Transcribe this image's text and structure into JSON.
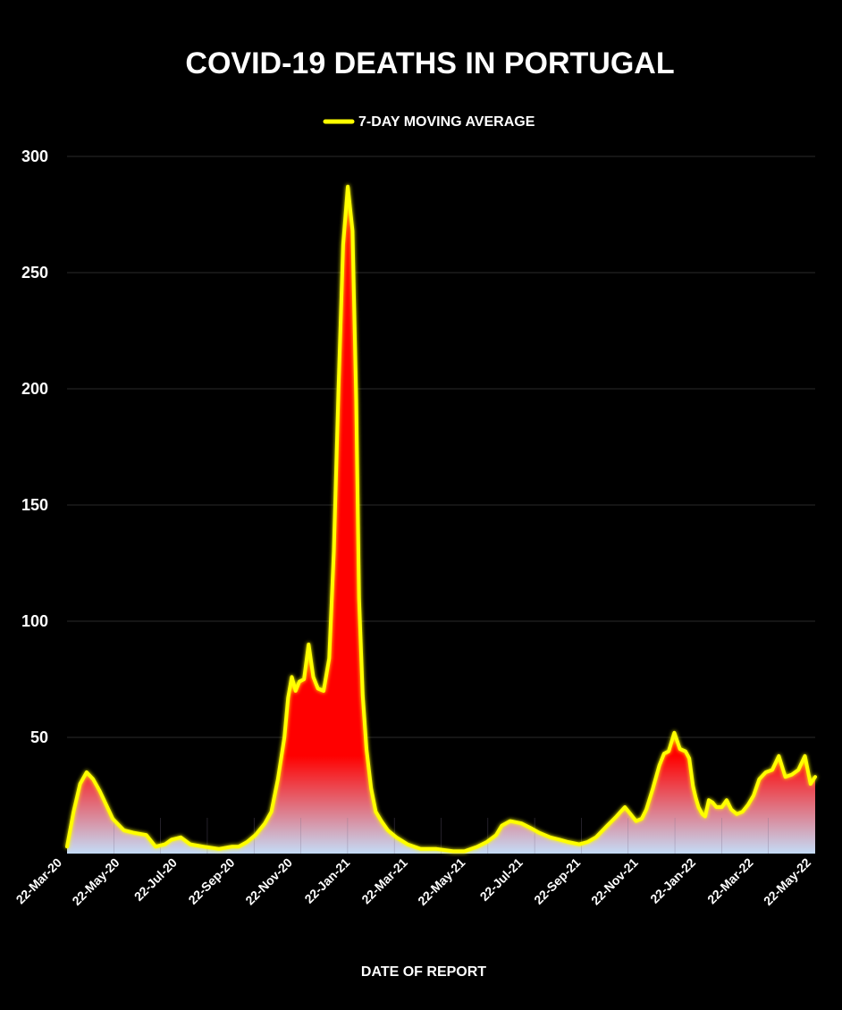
{
  "chart_data": {
    "type": "area",
    "title": "COVID-19 DEATHS IN PORTUGAL",
    "xlabel": "DATE OF REPORT",
    "ylabel": "",
    "ylim": [
      0,
      300
    ],
    "yticks": [
      50,
      100,
      150,
      200,
      250,
      300
    ],
    "grid": true,
    "legend": {
      "position": "top",
      "entries": [
        "7-DAY MOVING AVERAGE"
      ]
    },
    "colors": {
      "line": "#ffff00",
      "area_top": "#ff0000",
      "area_bottom": "#b7d4f5",
      "background": "#000000",
      "grid": "#2a2a2a"
    },
    "x_tick_labels": [
      "22-Mar-20",
      "22-May-20",
      "22-Jul-20",
      "22-Sep-20",
      "22-Nov-20",
      "22-Jan-21",
      "22-Mar-21",
      "22-May-21",
      "22-Jul-21",
      "22-Sep-21",
      "22-Nov-21",
      "22-Jan-22",
      "22-Mar-22",
      "22-May-22"
    ],
    "series": [
      {
        "name": "7-DAY MOVING AVERAGE",
        "x": [
          "2020-03-22",
          "2020-03-29",
          "2020-04-05",
          "2020-04-12",
          "2020-04-19",
          "2020-04-26",
          "2020-05-03",
          "2020-05-10",
          "2020-05-22",
          "2020-06-01",
          "2020-06-15",
          "2020-06-25",
          "2020-07-05",
          "2020-07-12",
          "2020-07-22",
          "2020-08-01",
          "2020-08-15",
          "2020-09-01",
          "2020-09-15",
          "2020-09-22",
          "2020-10-01",
          "2020-10-10",
          "2020-10-20",
          "2020-10-27",
          "2020-11-03",
          "2020-11-10",
          "2020-11-14",
          "2020-11-18",
          "2020-11-22",
          "2020-11-26",
          "2020-12-01",
          "2020-12-06",
          "2020-12-11",
          "2020-12-16",
          "2020-12-22",
          "2020-12-28",
          "2021-01-02",
          "2021-01-07",
          "2021-01-12",
          "2021-01-17",
          "2021-01-22",
          "2021-01-26",
          "2021-01-29",
          "2021-02-02",
          "2021-02-06",
          "2021-02-11",
          "2021-02-16",
          "2021-02-22",
          "2021-03-01",
          "2021-03-10",
          "2021-03-22",
          "2021-04-05",
          "2021-04-22",
          "2021-05-10",
          "2021-05-22",
          "2021-06-05",
          "2021-06-15",
          "2021-06-25",
          "2021-07-01",
          "2021-07-10",
          "2021-07-22",
          "2021-08-01",
          "2021-08-10",
          "2021-08-22",
          "2021-09-01",
          "2021-09-10",
          "2021-09-22",
          "2021-10-01",
          "2021-10-10",
          "2021-10-22",
          "2021-11-01",
          "2021-11-10",
          "2021-11-16",
          "2021-11-22",
          "2021-11-28",
          "2021-12-03",
          "2021-12-10",
          "2021-12-17",
          "2021-12-22",
          "2021-12-27",
          "2022-01-02",
          "2022-01-08",
          "2022-01-14",
          "2022-01-18",
          "2022-01-22",
          "2022-01-25",
          "2022-01-28",
          "2022-02-01",
          "2022-02-04",
          "2022-02-08",
          "2022-02-12",
          "2022-02-16",
          "2022-02-22",
          "2022-02-27",
          "2022-03-04",
          "2022-03-10",
          "2022-03-16",
          "2022-03-22",
          "2022-03-28",
          "2022-04-03",
          "2022-04-10",
          "2022-04-17",
          "2022-04-24",
          "2022-05-01",
          "2022-05-08",
          "2022-05-15",
          "2022-05-22",
          "2022-05-28",
          "2022-06-02"
        ],
        "values": [
          3,
          18,
          30,
          35,
          32,
          27,
          21,
          15,
          10,
          9,
          8,
          3,
          4,
          6,
          7,
          4,
          3,
          2,
          3,
          3,
          5,
          8,
          13,
          18,
          32,
          50,
          67,
          76,
          70,
          74,
          75,
          90,
          76,
          71,
          70,
          84,
          130,
          200,
          262,
          287,
          268,
          195,
          110,
          68,
          45,
          28,
          18,
          14,
          10,
          7,
          4,
          2,
          2,
          1,
          1,
          3,
          5,
          8,
          12,
          14,
          13,
          11,
          9,
          7,
          6,
          5,
          4,
          5,
          7,
          12,
          16,
          20,
          17,
          14,
          15,
          19,
          28,
          38,
          43,
          44,
          52,
          45,
          44,
          41,
          29,
          24,
          20,
          17,
          16,
          23,
          22,
          20,
          20,
          23,
          19,
          17,
          18,
          21,
          25,
          32,
          35,
          36,
          42,
          33,
          34,
          36,
          42,
          30,
          33
        ]
      }
    ]
  }
}
